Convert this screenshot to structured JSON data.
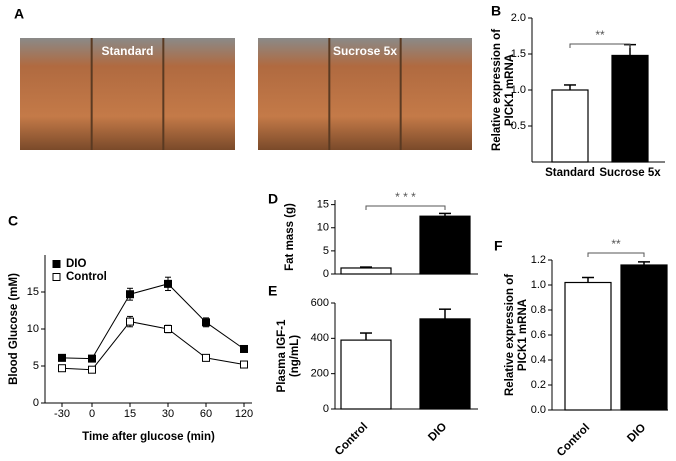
{
  "chart_data": [
    {
      "type": "image",
      "panel": "A",
      "labels": [
        "Standard",
        "Sucrose 5x"
      ]
    },
    {
      "type": "bar",
      "panel": "B",
      "ylabel": [
        "Relative expression of",
        "PICK1 mRNA"
      ],
      "categories": [
        "Standard",
        "Sucrose 5x"
      ],
      "values": [
        1.0,
        1.48
      ],
      "errors": [
        0.07,
        0.15
      ],
      "colors": [
        "#ffffff",
        "#000000"
      ],
      "ylim": [
        0,
        2
      ],
      "yticks": [
        {
          "value": 0.5,
          "label": "0.5"
        },
        {
          "value": 1,
          "label": "1.0"
        },
        {
          "value": 1.5,
          "label": "1.5"
        },
        {
          "value": 2,
          "label": "2.0"
        }
      ],
      "annotation": "**"
    },
    {
      "type": "line",
      "panel": "C",
      "xlabel": "Time after glucose (min)",
      "ylabel": [
        "Blood Glucose (mM)"
      ],
      "categories": [
        "-30",
        "0",
        "15",
        "30",
        "60",
        "120"
      ],
      "series": [
        {
          "name": "DIO",
          "color": "#000000",
          "values": [
            6.1,
            6.0,
            14.7,
            16.1,
            10.9,
            7.3
          ],
          "errors": [
            0.3,
            0.2,
            0.8,
            0.9,
            0.6,
            0.2
          ]
        },
        {
          "name": "Control",
          "color": "#ffffff",
          "values": [
            4.7,
            4.5,
            11.0,
            10.0,
            6.1,
            5.2
          ],
          "errors": [
            0.2,
            0.2,
            0.7,
            0.5,
            0.2,
            0.2
          ]
        }
      ],
      "ylim": [
        0,
        20
      ],
      "yticks": [
        0,
        5,
        10,
        15
      ]
    },
    {
      "type": "bar",
      "panel": "D",
      "ylabel": [
        "Fat mass (g)"
      ],
      "categories": [
        null,
        null
      ],
      "values": [
        1.3,
        12.5
      ],
      "errors": [
        0.2,
        0.6
      ],
      "colors": [
        "#ffffff",
        "#000000"
      ],
      "ylim": [
        0,
        16
      ],
      "yticks": [
        0,
        5,
        10,
        15
      ],
      "annotation": "* * *"
    },
    {
      "type": "bar",
      "panel": "E",
      "ylabel": [
        "Plasma IGF-1",
        "(ng/mL)"
      ],
      "categories": [
        "Control",
        "DIO"
      ],
      "values": [
        390,
        510
      ],
      "errors": [
        40,
        55
      ],
      "colors": [
        "#ffffff",
        "#000000"
      ],
      "ylim": [
        0,
        600
      ],
      "yticks": [
        0,
        200,
        400,
        600
      ]
    },
    {
      "type": "bar",
      "panel": "F",
      "ylabel": [
        "Relative expression of",
        "PICK1 mRNA"
      ],
      "categories": [
        "Control",
        "DIO"
      ],
      "values": [
        1.02,
        1.16
      ],
      "errors": [
        0.04,
        0.025
      ],
      "colors": [
        "#ffffff",
        "#000000"
      ],
      "ylim": [
        0,
        1.2
      ],
      "yticks": [
        {
          "value": 0,
          "label": "0.0"
        },
        0.2,
        0.4,
        0.6,
        0.8,
        {
          "value": 1,
          "label": "1.0"
        },
        1.2
      ],
      "annotation": "**"
    }
  ]
}
